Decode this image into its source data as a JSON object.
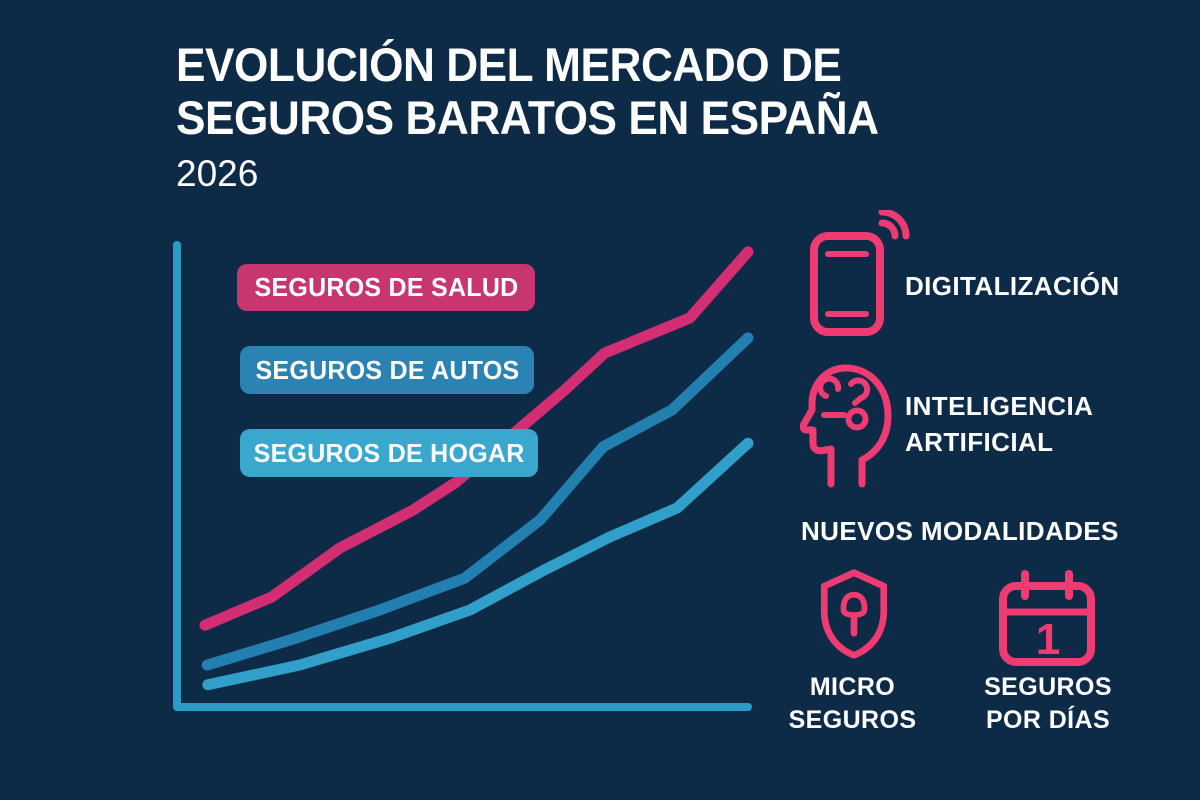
{
  "title": {
    "line1": "EVOLUCIÓN DEL MERCADO DE",
    "line2": "SEGUROS BARATOS EN ESPAÑA",
    "year": "2026"
  },
  "colors": {
    "background": "#0d2a47",
    "accent_pink": "#ee3b72",
    "axis_blue": "#2b9cc8",
    "text_white": "#ffffff"
  },
  "legend": [
    {
      "label": "SEGUROS DE SALUD",
      "color": "#c7366f"
    },
    {
      "label": "SEGUROS DE AUTOS",
      "color": "#2b83b3"
    },
    {
      "label": "SEGUROS DE HOGAR",
      "color": "#3aa7ce"
    }
  ],
  "features": [
    {
      "icon": "smartphone-icon",
      "label": "DIGITALIZACIÓN"
    },
    {
      "icon": "ai-head-icon",
      "label": "INTELIGENCIA\nARTIFICIAL"
    }
  ],
  "modalities": {
    "heading": "NUEVOS MODALIDADES",
    "items": [
      {
        "icon": "shield-icon",
        "label": "MICRO\nSEGUROS"
      },
      {
        "icon": "calendar-icon",
        "label": "SEGUROS\nPOR DÍAS",
        "calendar_digit": "1"
      }
    ]
  },
  "chart_data": {
    "type": "line",
    "title": "Evolución del mercado de seguros baratos en España 2026",
    "xlabel": "",
    "ylabel": "",
    "grid": false,
    "axes_labeled": false,
    "legend_position": "top-left-overlay",
    "note": "Stylized infographic trend lines; axes carry no tick labels. Values are relative growth index 0-100 estimated from pixel positions.",
    "xlim": [
      0,
      100
    ],
    "ylim": [
      0,
      100
    ],
    "series": [
      {
        "name": "SEGUROS DE SALUD",
        "color": "#d42e72",
        "x": [
          4.9,
          16.6,
          28.5,
          41.3,
          48.7,
          60.1,
          67.9,
          74.9,
          89.8,
          100
        ],
        "y": [
          17.7,
          23.8,
          34.4,
          42.6,
          48.5,
          60.4,
          68.6,
          76.6,
          84.2,
          98.5
        ]
      },
      {
        "name": "SEGUROS DE AUTOS",
        "color": "#2280b1",
        "x": [
          5.3,
          19.8,
          35.5,
          50.4,
          63.6,
          74.6,
          86.7,
          100
        ],
        "y": [
          9.1,
          14.5,
          21.0,
          27.9,
          40.5,
          56.3,
          64.3,
          79.9
        ]
      },
      {
        "name": "SEGUROS DE HOGAR",
        "color": "#30a0ca",
        "x": [
          5.4,
          21.5,
          37.3,
          51.3,
          64.4,
          75.8,
          87.6,
          100
        ],
        "y": [
          4.8,
          9.1,
          14.9,
          21.0,
          29.7,
          36.8,
          43.1,
          57.1
        ]
      }
    ]
  }
}
